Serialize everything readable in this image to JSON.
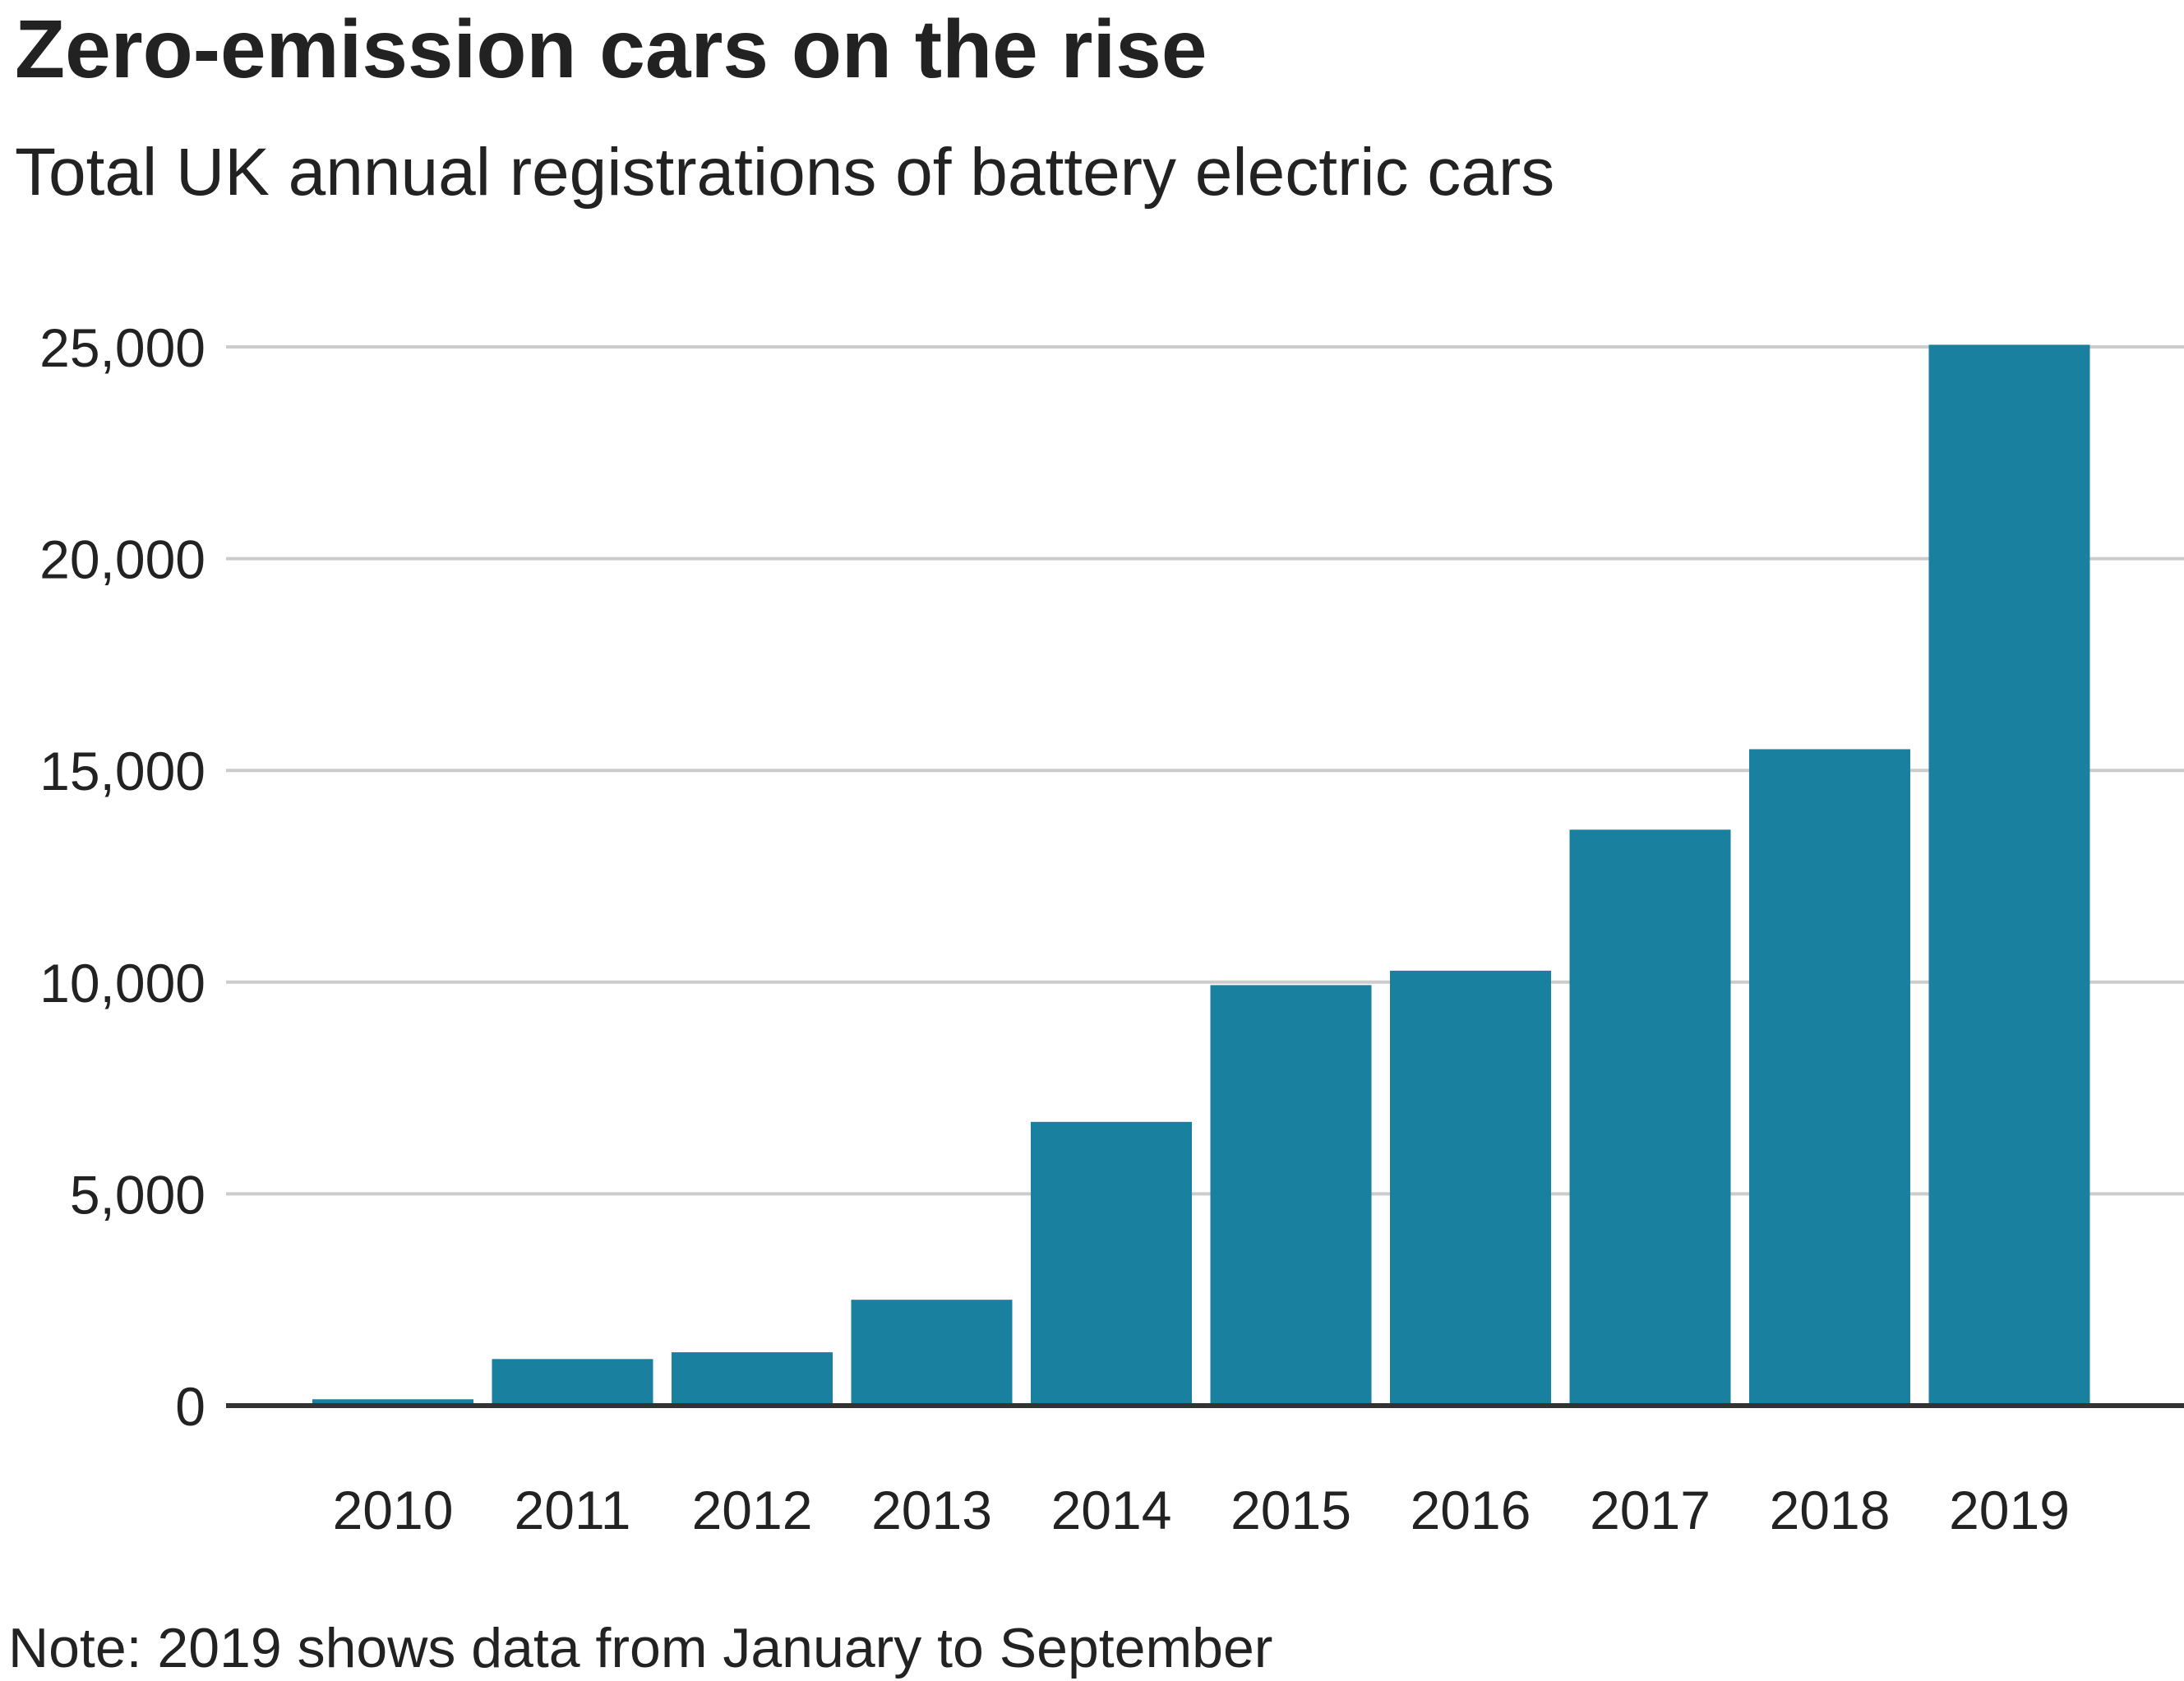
{
  "header": {
    "title": "Zero-emission cars on the rise",
    "subtitle": "Total UK annual registrations of battery electric cars"
  },
  "footer": {
    "note": "Note: 2019 shows data from January to September"
  },
  "colors": {
    "bar": "#1a80a0",
    "grid": "#cccccc",
    "axis": "#333333",
    "text": "#222222"
  },
  "chart_data": {
    "type": "bar",
    "title": "Zero-emission cars on the rise",
    "subtitle": "Total UK annual registrations of battery electric cars",
    "categories": [
      "2010",
      "2011",
      "2012",
      "2013",
      "2014",
      "2015",
      "2016",
      "2017",
      "2018",
      "2019"
    ],
    "values": [
      150,
      1100,
      1260,
      2500,
      6700,
      9930,
      10270,
      13600,
      15500,
      25050
    ],
    "ylim": [
      0,
      25000
    ],
    "yticks": [
      0,
      5000,
      10000,
      15000,
      20000,
      25000
    ],
    "ytick_labels": [
      "0",
      "5,000",
      "10,000",
      "15,000",
      "20,000",
      "25,000"
    ],
    "grid": true,
    "legend": "none"
  }
}
